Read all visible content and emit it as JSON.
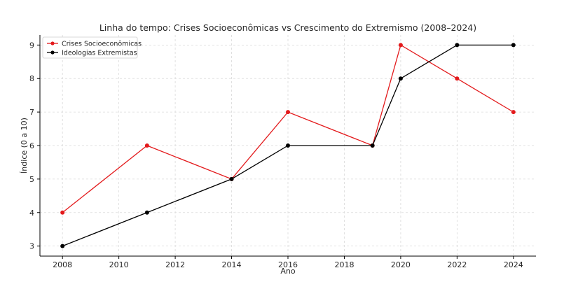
{
  "chart_data": {
    "type": "line",
    "title": "Linha do tempo: Crises Socioeconômicas vs Crescimento do Extremismo (2008–2024)",
    "xlabel": "Ano",
    "ylabel": "Índice (0 a 10)",
    "xlim": [
      2007.2,
      2024.8
    ],
    "ylim": [
      2.7,
      9.3
    ],
    "x_ticks": [
      2008,
      2010,
      2012,
      2014,
      2016,
      2018,
      2020,
      2022,
      2024
    ],
    "y_ticks": [
      3,
      4,
      5,
      6,
      7,
      8,
      9
    ],
    "grid": true,
    "legend_position": "top-left",
    "series": [
      {
        "name": "Crises Socioeconômicas",
        "color": "#e31a1c",
        "x": [
          2008,
          2011,
          2014,
          2016,
          2019,
          2020,
          2022,
          2024
        ],
        "values": [
          4,
          6,
          5,
          7,
          6,
          9,
          8,
          7
        ]
      },
      {
        "name": "Ideologias Extremistas",
        "color": "#000000",
        "x": [
          2008,
          2011,
          2014,
          2016,
          2019,
          2020,
          2022,
          2024
        ],
        "values": [
          3,
          4,
          5,
          6,
          6,
          8,
          9,
          9
        ]
      }
    ]
  }
}
